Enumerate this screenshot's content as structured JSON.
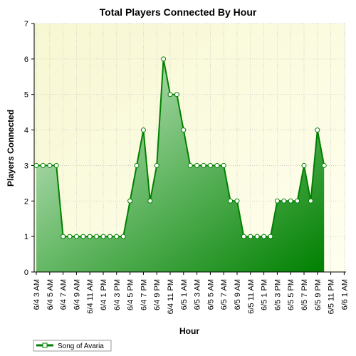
{
  "chart_data": {
    "type": "area",
    "title": "Total Players Connected By Hour",
    "xlabel": "Hour",
    "ylabel": "Players Connected",
    "ylim": [
      0,
      7
    ],
    "yticks": [
      0,
      1,
      2,
      3,
      4,
      5,
      6,
      7
    ],
    "grid": true,
    "legend_position": "bottom-left",
    "x_tick_labels": [
      "6/4 3 AM",
      "6/4 5 AM",
      "6/4 7 AM",
      "6/4 9 AM",
      "6/4 11 AM",
      "6/4 1 PM",
      "6/4 3 PM",
      "6/4 5 PM",
      "6/4 7 PM",
      "6/4 9 PM",
      "6/4 11 PM",
      "6/5 1 AM",
      "6/5 3 AM",
      "6/5 5 AM",
      "6/5 7 AM",
      "6/5 9 AM",
      "6/5 11 AM",
      "6/5 1 PM",
      "6/5 3 PM",
      "6/5 5 PM",
      "6/5 7 PM",
      "6/5 9 PM",
      "6/5 11 PM",
      "6/6 1 AM"
    ],
    "series": [
      {
        "name": "Song of Avaria",
        "color": "#008000",
        "values": [
          3,
          3,
          3,
          3,
          1,
          1,
          1,
          1,
          1,
          1,
          1,
          1,
          1,
          1,
          2,
          3,
          4,
          2,
          3,
          6,
          5,
          5,
          4,
          3,
          3,
          3,
          3,
          3,
          3,
          2,
          2,
          1,
          1,
          1,
          1,
          1,
          2,
          2,
          2,
          2,
          3,
          2,
          4,
          3
        ]
      }
    ]
  }
}
